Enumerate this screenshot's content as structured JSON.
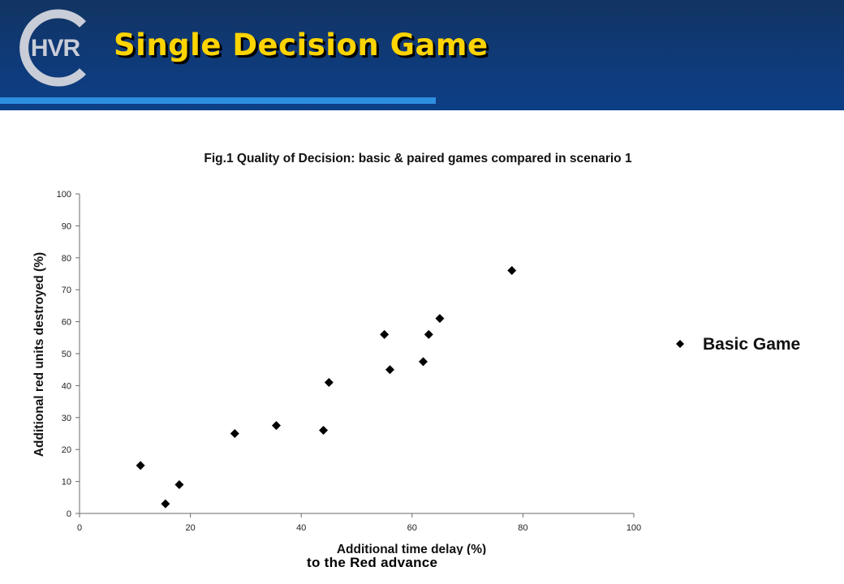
{
  "slide": {
    "title": "Single Decision Game",
    "logo_text": "HVR",
    "caption": "to the Red advance"
  },
  "colors": {
    "header_bg": "#0f3a78",
    "header_stripe": "#2d8fe0",
    "title": "#ffd400",
    "logo": "#c9cdd8",
    "marker": "#000000"
  },
  "chart_data": {
    "type": "scatter",
    "title": "Fig.1 Quality of Decision: basic & paired games compared in scenario 1",
    "xlabel": "Additional time delay (%)",
    "ylabel": "Additional red units destroyed (%)",
    "xlim": [
      0,
      100
    ],
    "ylim": [
      0,
      100
    ],
    "xticks": [
      0,
      20,
      40,
      60,
      80,
      100
    ],
    "yticks": [
      0,
      10,
      20,
      30,
      40,
      50,
      60,
      70,
      80,
      90,
      100
    ],
    "grid": false,
    "legend_position": "right",
    "series": [
      {
        "name": "Basic Game",
        "marker": "diamond",
        "points": [
          {
            "x": 11,
            "y": 15
          },
          {
            "x": 15.5,
            "y": 3
          },
          {
            "x": 18,
            "y": 9
          },
          {
            "x": 28,
            "y": 25
          },
          {
            "x": 35.5,
            "y": 27.5
          },
          {
            "x": 44,
            "y": 26
          },
          {
            "x": 45,
            "y": 41
          },
          {
            "x": 55,
            "y": 56
          },
          {
            "x": 56,
            "y": 45
          },
          {
            "x": 62,
            "y": 47.5
          },
          {
            "x": 63,
            "y": 56
          },
          {
            "x": 65,
            "y": 61
          },
          {
            "x": 78,
            "y": 76
          }
        ]
      }
    ]
  }
}
